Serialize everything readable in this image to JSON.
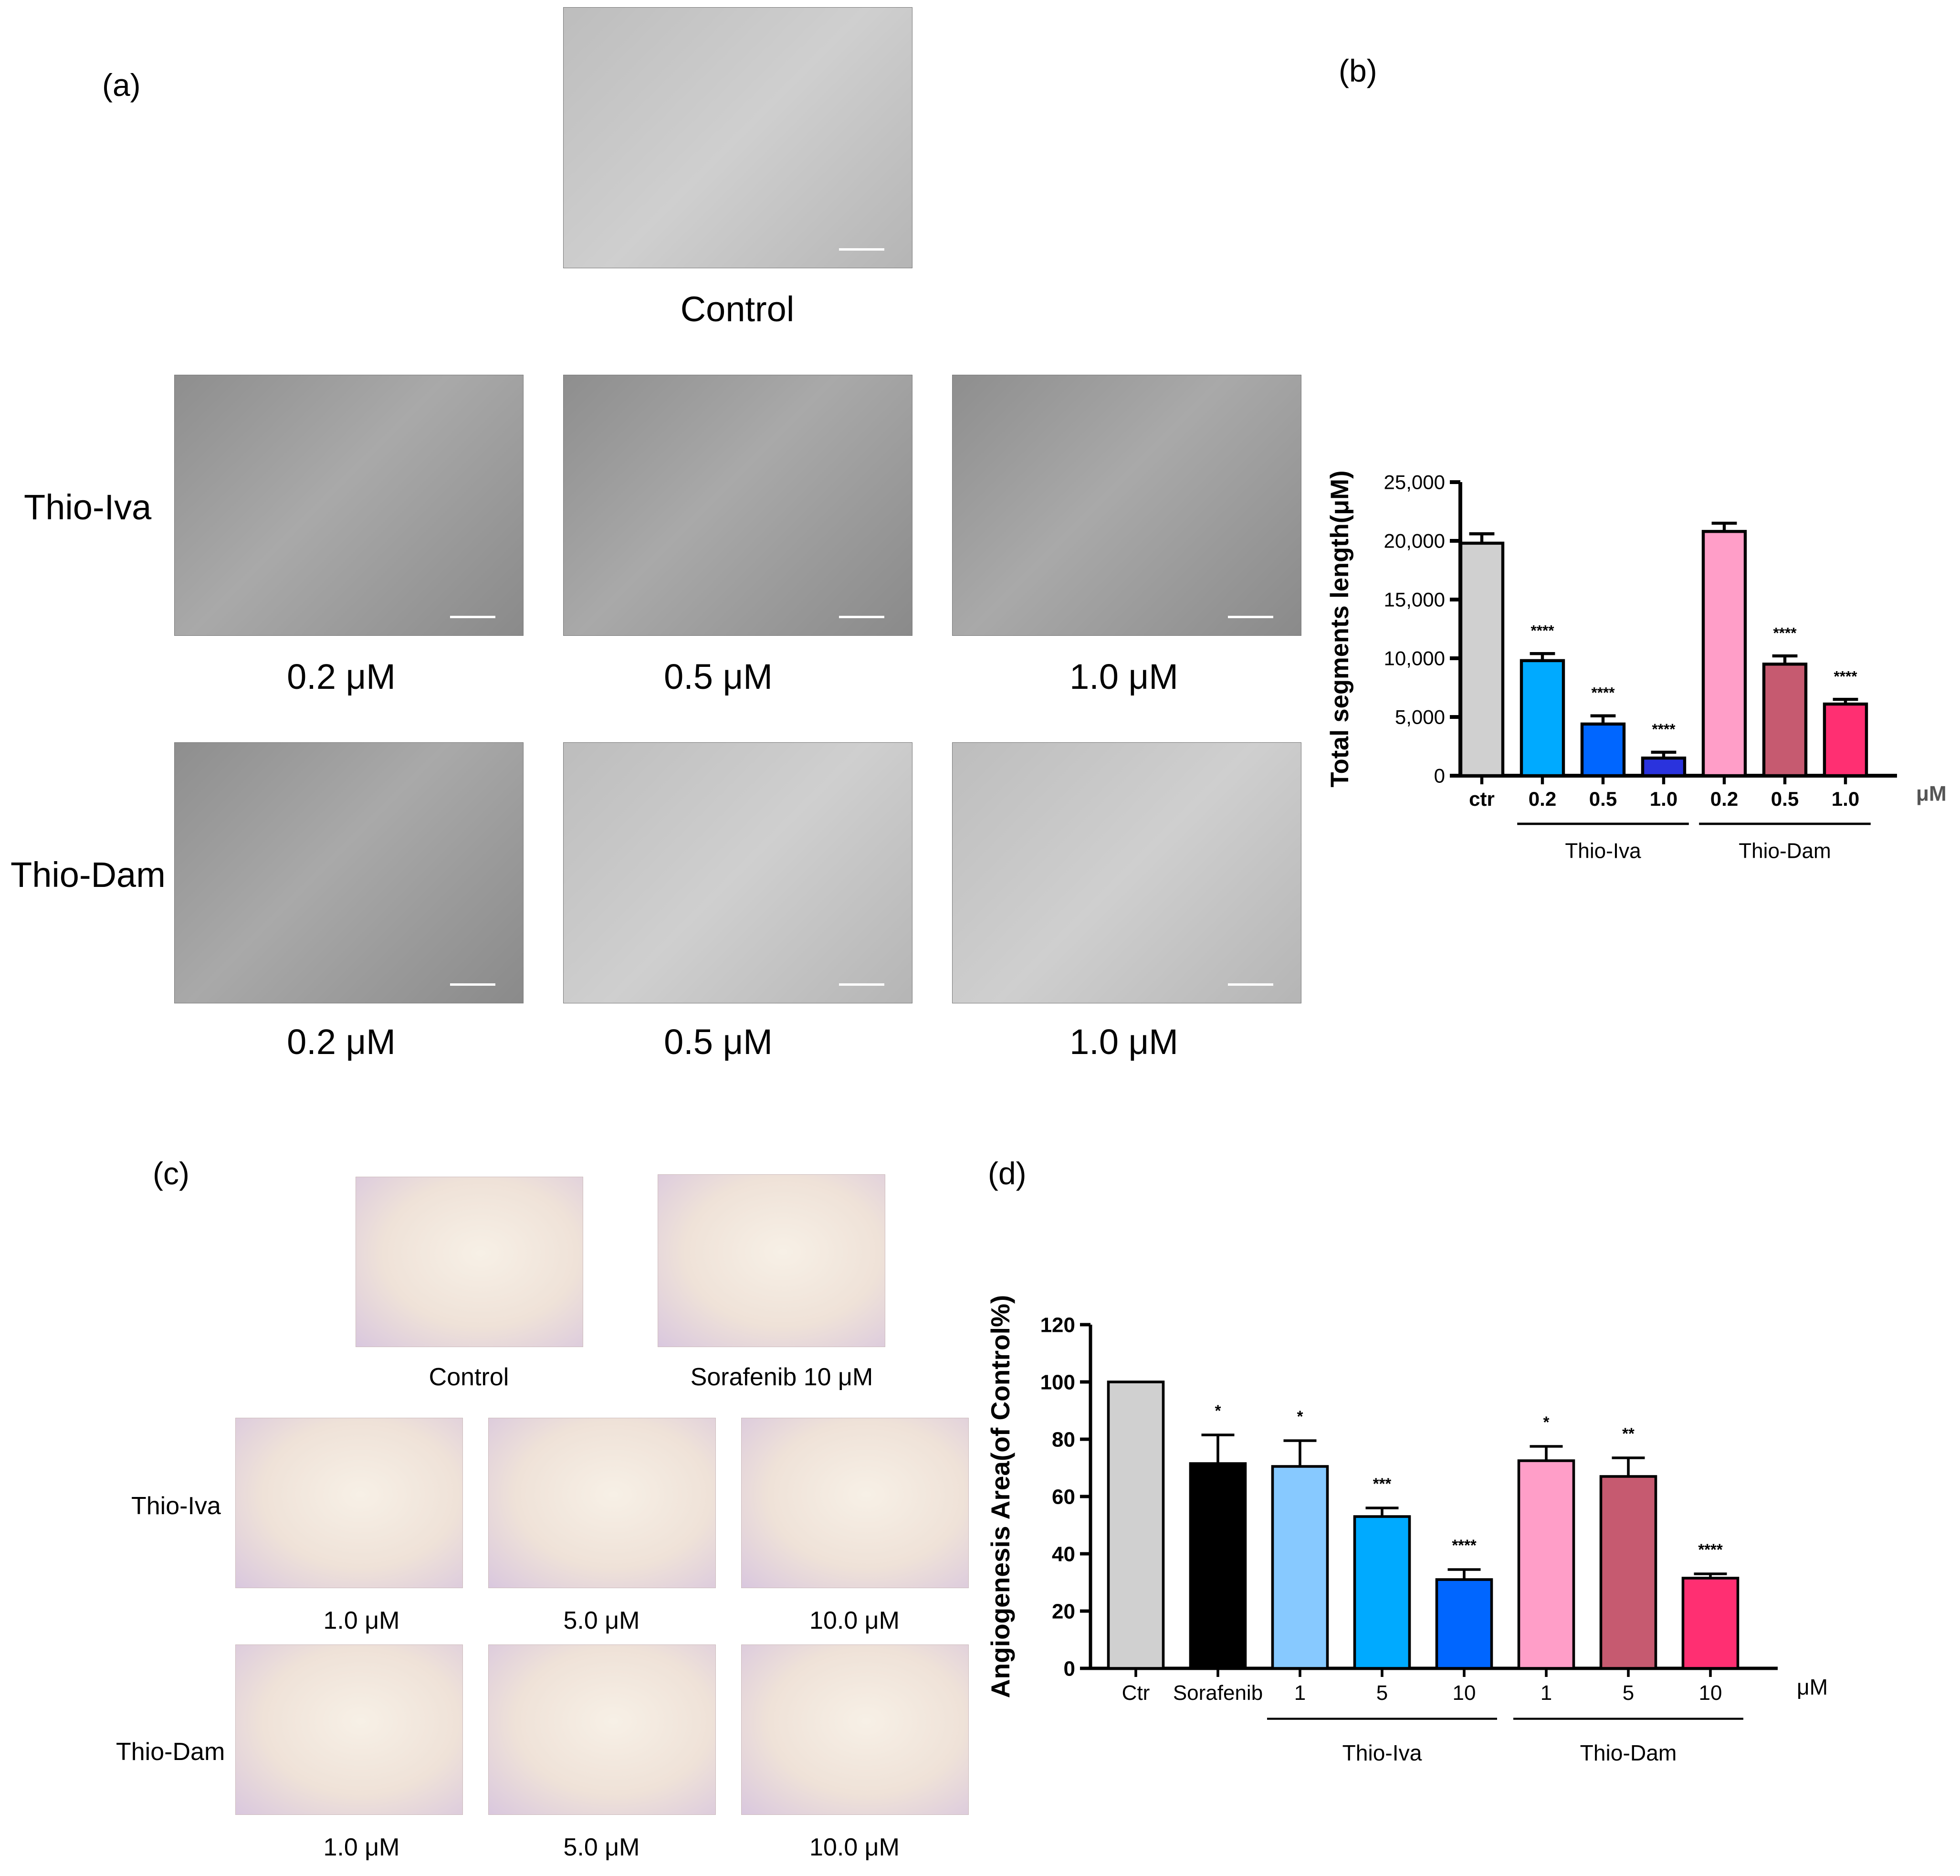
{
  "panel_a": {
    "label": "(a)",
    "control_caption": "Control",
    "row_labels": [
      "Thio-Iva",
      "Thio-Dam"
    ],
    "row1_captions": [
      "0.2 μM",
      "0.5 μM",
      "1.0 μM"
    ],
    "row2_captions": [
      "0.2 μM",
      "0.5 μM",
      "1.0 μM"
    ]
  },
  "panel_c": {
    "label": "(c)",
    "top_captions": [
      "Control",
      "Sorafenib 10 μM"
    ],
    "row_labels": [
      "Thio-Iva",
      "Thio-Dam"
    ],
    "row1_captions": [
      "1.0 μM",
      "5.0 μM",
      "10.0 μM"
    ],
    "row2_captions": [
      "1.0 μM",
      "5.0 μM",
      "10.0 μM"
    ]
  },
  "chart_data": [
    {
      "panel": "(b)",
      "type": "bar",
      "ylabel": "Total segments length(μM)",
      "ylim": [
        0,
        25000
      ],
      "yticks": [
        "0",
        "5,000",
        "10,000",
        "15,000",
        "20,000",
        "25,000"
      ],
      "categories": [
        "ctr",
        "0.2",
        "0.5",
        "1.0",
        "0.2",
        "0.5",
        "1.0"
      ],
      "unit_label": "μM",
      "values": [
        19800,
        9800,
        4400,
        1500,
        20800,
        9500,
        6100
      ],
      "errors": [
        800,
        600,
        700,
        500,
        700,
        700,
        400
      ],
      "significance": [
        "",
        "****",
        "****",
        "****",
        "",
        "****",
        "****"
      ],
      "colors": [
        "#d0d0d0",
        "#00aaff",
        "#0066ff",
        "#2a33dd",
        "#ff9ec8",
        "#c65a70",
        "#ff2f72"
      ],
      "groups": [
        {
          "label": "Thio-Iva",
          "from": 1,
          "to": 3
        },
        {
          "label": "Thio-Dam",
          "from": 4,
          "to": 6
        }
      ]
    },
    {
      "panel": "(d)",
      "type": "bar",
      "ylabel": "Angiogenesis Area(of Control%)",
      "ylim": [
        0,
        120
      ],
      "yticks": [
        "0",
        "20",
        "40",
        "60",
        "80",
        "100",
        "120"
      ],
      "categories": [
        "Ctr",
        "Sorafenib",
        "1",
        "5",
        "10",
        "1",
        "5",
        "10"
      ],
      "unit_label": "μM",
      "values": [
        100,
        71.5,
        70.5,
        53,
        31,
        72.5,
        67,
        31.5
      ],
      "errors": [
        0,
        10,
        9,
        3,
        3.5,
        5,
        6.5,
        1.5
      ],
      "significance": [
        "",
        "*",
        "*",
        "***",
        "****",
        "*",
        "**",
        "****"
      ],
      "colors": [
        "#d0d0d0",
        "#000000",
        "#87c9ff",
        "#00aaff",
        "#0066ff",
        "#ff9ec8",
        "#c65a70",
        "#ff2f72"
      ],
      "groups": [
        {
          "label": "Thio-Iva",
          "from": 2,
          "to": 4
        },
        {
          "label": "Thio-Dam",
          "from": 5,
          "to": 7
        }
      ]
    }
  ]
}
